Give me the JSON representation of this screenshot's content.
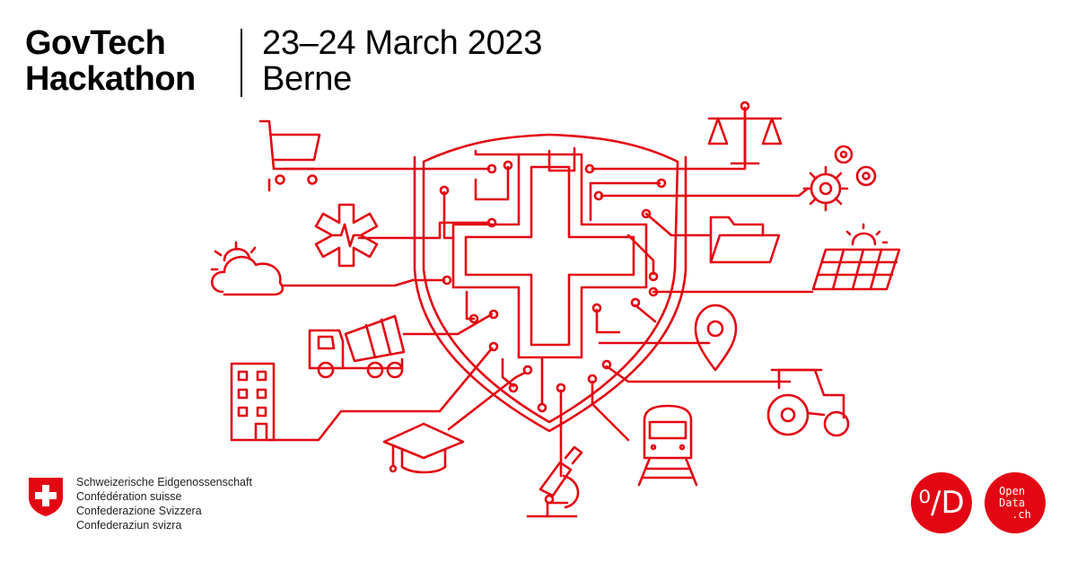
{
  "event": {
    "title_line1": "GovTech",
    "title_line2": "Hackathon",
    "date": "23–24 March 2023",
    "location": "Berne"
  },
  "confederation": {
    "names": [
      "Schweizerische Eidgenossenschaft",
      "Confédération suisse",
      "Confederazione Svizzera",
      "Confederaziun svizra"
    ]
  },
  "opendata": {
    "logo_symbol": "⁰∕D",
    "badge_line1": "Open",
    "badge_line2": "Data",
    "badge_line3": ".ch"
  },
  "colors": {
    "accent": "#e30613",
    "text": "#000000"
  },
  "icons": [
    "shopping-cart-icon",
    "scales-icon",
    "gears-icon",
    "medical-star-icon",
    "folder-icon",
    "weather-icon",
    "solar-panel-icon",
    "cement-truck-icon",
    "location-pin-icon",
    "building-icon",
    "tractor-icon",
    "graduation-cap-icon",
    "train-icon",
    "microscope-icon",
    "swiss-shield-circuit-icon",
    "swiss-cross-logo-icon"
  ]
}
